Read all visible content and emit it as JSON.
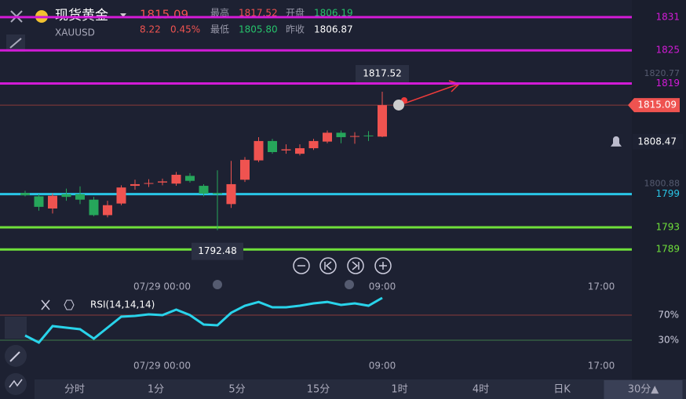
{
  "header": {
    "name": "现货黄金",
    "symbol": "XAUUSD",
    "change": "8.22",
    "change_pct": "0.45%",
    "high_label": "最高",
    "open_label": "开盘",
    "open": "1806.19",
    "low_label": "最低",
    "low": "1805.80",
    "prev_label": "昨收",
    "prev": "1806.87"
  },
  "chart_data": {
    "type": "candlestick",
    "open": [
      1799.2,
      1798.6,
      1796.4,
      1799.0,
      1799.0,
      1798.0,
      1795.2,
      1797.3,
      1800.5,
      1800.9,
      1801.1,
      1800.9,
      1802.3,
      1800.5,
      1799.2,
      1797.2,
      1801.6,
      1805.1,
      1808.6,
      1806.9,
      1806.3,
      1807.3,
      1808.5,
      1810.1,
      1809.4,
      1809.6,
      1809.4
    ],
    "high": [
      1799.6,
      1799.0,
      1799.1,
      1800.0,
      1800.4,
      1798.5,
      1797.8,
      1800.6,
      1801.6,
      1801.7,
      1801.8,
      1803.0,
      1802.8,
      1800.8,
      1803.3,
      1805.0,
      1805.7,
      1809.3,
      1809.0,
      1808.0,
      1808.0,
      1809.0,
      1810.5,
      1810.5,
      1810.2,
      1810.4,
      1817.52
    ],
    "low": [
      1798.6,
      1796.0,
      1795.5,
      1797.8,
      1797.2,
      1795.0,
      1794.8,
      1797.0,
      1799.8,
      1800.3,
      1800.6,
      1800.5,
      1801.1,
      1798.6,
      1792.48,
      1796.5,
      1801.2,
      1804.8,
      1806.3,
      1806.3,
      1806.0,
      1807.0,
      1808.2,
      1808.2,
      1808.1,
      1808.6,
      1809.3
    ],
    "close": [
      1798.8,
      1796.7,
      1798.7,
      1798.5,
      1798.0,
      1795.2,
      1797.0,
      1800.2,
      1800.8,
      1801.0,
      1801.3,
      1802.5,
      1801.4,
      1799.1,
      1799.0,
      1800.8,
      1805.2,
      1808.6,
      1806.6,
      1807.1,
      1807.3,
      1808.6,
      1810.1,
      1809.3,
      1809.5,
      1809.5,
      1815.09
    ],
    "up_color": "#ef5350",
    "down_color": "#26a65b",
    "ylim": [
      1785.2,
      1834.1
    ],
    "yticks": [
      1820.77,
      1800.88
    ],
    "lines": [
      {
        "value": 1831,
        "color": "#d21bd6"
      },
      {
        "value": 1825,
        "color": "#d21bd6"
      },
      {
        "value": 1819,
        "color": "#d21bd6"
      },
      {
        "value": 1799,
        "color": "#29c5e6"
      },
      {
        "value": 1793,
        "color": "#6fe03a"
      },
      {
        "value": 1789,
        "color": "#6fe03a"
      }
    ],
    "marker_price": 1808.47,
    "time_labels": [
      "07/29 00:00",
      "09:00",
      "17:00"
    ],
    "rsi": {
      "label": "RSI(14,14,14)",
      "color": "#29d3ea",
      "values": [
        37.5,
        26.3,
        52.5,
        50,
        47.5,
        32.5,
        50,
        67.5,
        68.8,
        71.3,
        70,
        78.8,
        70,
        55,
        53.8,
        73.8,
        85,
        91,
        82.5,
        82.5,
        85,
        88.8,
        91,
        86.3,
        88.8,
        85,
        97.5
      ],
      "ylim": [
        0,
        100
      ],
      "levels": [
        {
          "value": 70,
          "label": "70%"
        },
        {
          "value": 30,
          "label": "30%"
        }
      ]
    }
  },
  "tabs": [
    "分时",
    "1分",
    "5分",
    "15分",
    "1时",
    "4时",
    "日K",
    "30分▲"
  ]
}
